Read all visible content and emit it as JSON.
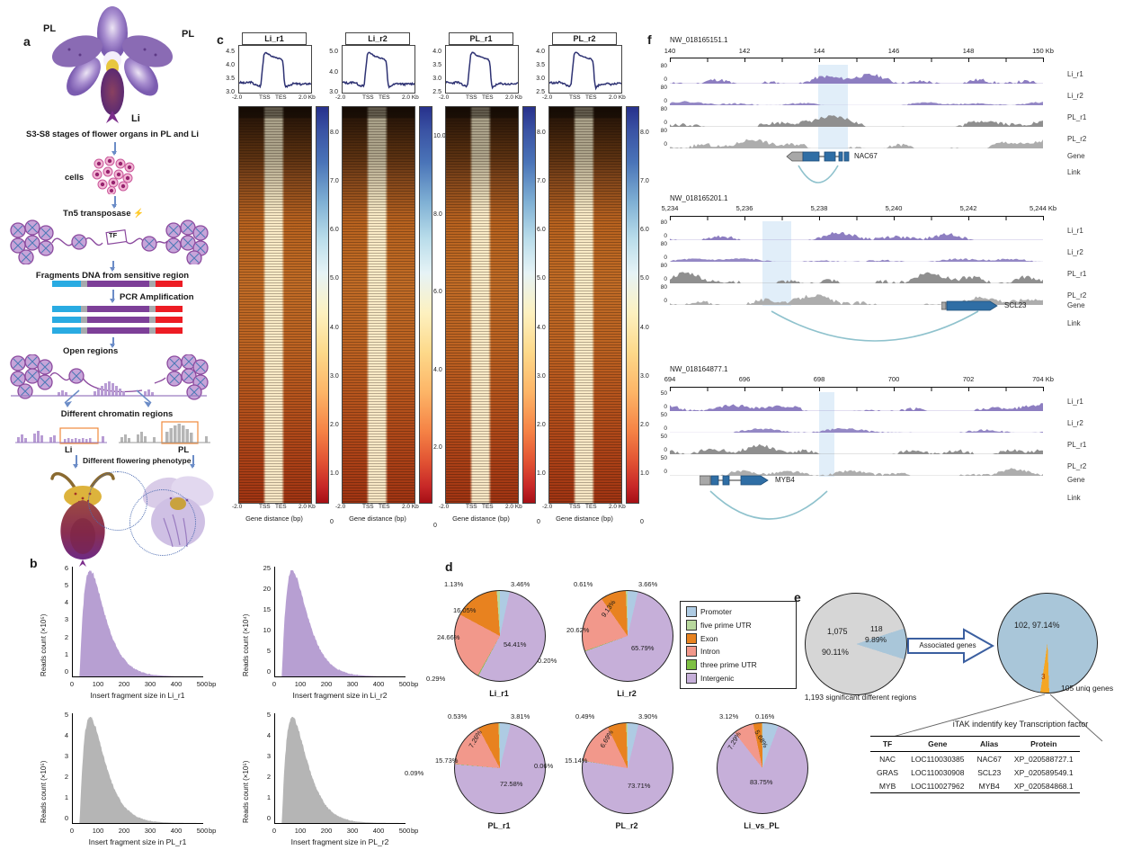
{
  "panels": {
    "a": "a",
    "b": "b",
    "c": "c",
    "d": "d",
    "e": "e",
    "f": "f"
  },
  "panel_a": {
    "pl_left": "PL",
    "pl_right": "PL",
    "li": "Li",
    "stages": "S3-S8 stages of flower organs in PL and Li",
    "cells": "cells",
    "tn5": "Tn5 transposase",
    "tf": "TF",
    "fragments": "Fragments DNA from sensitive region",
    "pcr": "PCR Amplification",
    "open": "Open regions",
    "chromatin": "Different chromatin regions",
    "li2": "Li",
    "pl2": "PL",
    "phenotype": "Different flowering phenotype"
  },
  "panel_b": {
    "hists": [
      {
        "ylabel": "Reads count (×10⁵)",
        "yticks": [
          "6",
          "5",
          "4",
          "3",
          "2",
          "1",
          "0"
        ],
        "xticks": [
          "0",
          "100",
          "200",
          "300",
          "400",
          "500"
        ],
        "xunit": "bp",
        "xlabel": "Insert fragment size in Li_r1",
        "color": "#b79fd2"
      },
      {
        "ylabel": "Reads count (×10⁴)",
        "yticks": [
          "25",
          "20",
          "15",
          "10",
          "5",
          "0"
        ],
        "xticks": [
          "0",
          "100",
          "200",
          "300",
          "400",
          "500"
        ],
        "xunit": "bp",
        "xlabel": "Insert fragment size in Li_r2",
        "color": "#b79fd2"
      },
      {
        "ylabel": "Reads count (×10⁵)",
        "yticks": [
          "5",
          "4",
          "3",
          "2",
          "1",
          "0"
        ],
        "xticks": [
          "0",
          "100",
          "200",
          "300",
          "400",
          "500"
        ],
        "xunit": "bp",
        "xlabel": "Insert fragment size in PL_r1",
        "color": "#b5b5b5"
      },
      {
        "ylabel": "Reads count (×10⁵)",
        "yticks": [
          "5",
          "4",
          "3",
          "2",
          "1",
          "0"
        ],
        "xticks": [
          "0",
          "100",
          "200",
          "300",
          "400",
          "500"
        ],
        "xunit": "bp",
        "xlabel": "Insert fragment size in PL_r2",
        "color": "#b5b5b5"
      }
    ]
  },
  "panel_c": {
    "xticks": [
      "-2.0",
      "TSS",
      "TES",
      "2.0 Kb"
    ],
    "xlabel": "Gene distance (bp)",
    "columns": [
      {
        "title": "Li_r1",
        "yticks": [
          "4.5",
          "4.0",
          "3.5",
          "3.0"
        ],
        "cticks": [
          "8.0",
          "7.0",
          "6.0",
          "5.0",
          "4.0",
          "3.0",
          "2.0",
          "1.0",
          "0"
        ]
      },
      {
        "title": "Li_r2",
        "yticks": [
          "5.0",
          "4.0",
          "3.0"
        ],
        "cticks": [
          "10.0",
          "8.0",
          "6.0",
          "4.0",
          "2.0",
          "0"
        ]
      },
      {
        "title": "PL_r1",
        "yticks": [
          "4.0",
          "3.5",
          "3.0",
          "2.5"
        ],
        "cticks": [
          "8.0",
          "7.0",
          "6.0",
          "5.0",
          "4.0",
          "3.0",
          "2.0",
          "1.0",
          "0"
        ]
      },
      {
        "title": "PL_r2",
        "yticks": [
          "4.0",
          "3.5",
          "3.0",
          "2.5"
        ],
        "cticks": [
          "8.0",
          "7.0",
          "6.0",
          "5.0",
          "4.0",
          "3.0",
          "2.0",
          "1.0",
          "0"
        ]
      }
    ]
  },
  "panel_d": {
    "legend": [
      {
        "label": "Promoter",
        "color": "#aecbe3"
      },
      {
        "label": "five prime UTR",
        "color": "#b8d89d"
      },
      {
        "label": "Exon",
        "color": "#e8821f"
      },
      {
        "label": "Intron",
        "color": "#f2988b"
      },
      {
        "label": "three prime UTR",
        "color": "#7ec043"
      },
      {
        "label": "Intergenic",
        "color": "#c6afd9"
      }
    ],
    "pies": [
      {
        "name": "Li_r1",
        "slices": [
          {
            "legend": "Promoter",
            "color": "#aecbe3",
            "pct": 3.46,
            "label": "3.46%"
          },
          {
            "legend": "Intergenic",
            "color": "#c6afd9",
            "pct": 54.41,
            "label": "54.41%"
          },
          {
            "legend": "three prime UTR",
            "color": "#7ec043",
            "pct": 0.29,
            "label": "0.29%"
          },
          {
            "legend": "Intron",
            "color": "#f2988b",
            "pct": 24.66,
            "label": "24.66%"
          },
          {
            "legend": "Exon",
            "color": "#e8821f",
            "pct": 16.05,
            "label": "16.05%"
          },
          {
            "legend": "five prime UTR",
            "color": "#b8d89d",
            "pct": 1.13,
            "label": "1.13%"
          }
        ]
      },
      {
        "name": "Li_r2",
        "slices": [
          {
            "legend": "Promoter",
            "color": "#aecbe3",
            "pct": 3.66,
            "label": "3.66%"
          },
          {
            "legend": "Intergenic",
            "color": "#c6afd9",
            "pct": 65.79,
            "label": "65.79%"
          },
          {
            "legend": "three prime UTR",
            "color": "#7ec043",
            "pct": 0.2,
            "label": "0.20%"
          },
          {
            "legend": "Intron",
            "color": "#f2988b",
            "pct": 20.62,
            "label": "20.62%"
          },
          {
            "legend": "Exon",
            "color": "#e8821f",
            "pct": 9.13,
            "label": "9.13%"
          },
          {
            "legend": "five prime UTR",
            "color": "#b8d89d",
            "pct": 0.61,
            "label": "0.61%"
          }
        ]
      },
      {
        "name": "PL_r1",
        "slices": [
          {
            "legend": "Promoter",
            "color": "#aecbe3",
            "pct": 3.81,
            "label": "3.81%"
          },
          {
            "legend": "Intergenic",
            "color": "#c6afd9",
            "pct": 72.58,
            "label": "72.58%"
          },
          {
            "legend": "three prime UTR",
            "color": "#7ec043",
            "pct": 0.09,
            "label": "0.09%"
          },
          {
            "legend": "Intron",
            "color": "#f2988b",
            "pct": 15.73,
            "label": "15.73%"
          },
          {
            "legend": "Exon",
            "color": "#e8821f",
            "pct": 7.26,
            "label": "7.26%"
          },
          {
            "legend": "five prime UTR",
            "color": "#b8d89d",
            "pct": 0.53,
            "label": "0.53%"
          }
        ]
      },
      {
        "name": "PL_r2",
        "slices": [
          {
            "legend": "Promoter",
            "color": "#aecbe3",
            "pct": 3.9,
            "label": "3.90%"
          },
          {
            "legend": "Intergenic",
            "color": "#c6afd9",
            "pct": 73.71,
            "label": "73.71%"
          },
          {
            "legend": "three prime UTR",
            "color": "#7ec043",
            "pct": 0.06,
            "label": "0.06%"
          },
          {
            "legend": "Intron",
            "color": "#f2988b",
            "pct": 15.14,
            "label": "15.14%"
          },
          {
            "legend": "Exon",
            "color": "#e8821f",
            "pct": 6.69,
            "label": "6.69%"
          },
          {
            "legend": "five prime UTR",
            "color": "#b8d89d",
            "pct": 0.49,
            "label": "0.49%"
          }
        ]
      },
      {
        "name": "Li_vs_PL",
        "slices": [
          {
            "legend": "Promoter",
            "color": "#aecbe3",
            "pct": 5.68,
            "label": "5.68%"
          },
          {
            "legend": "Intergenic",
            "color": "#c6afd9",
            "pct": 83.75,
            "label": "83.75%"
          },
          {
            "legend": "Intron",
            "color": "#f2988b",
            "pct": 7.29,
            "label": "7.29%"
          },
          {
            "legend": "Exon",
            "color": "#e8821f",
            "pct": 3.12,
            "label": "3.12%"
          },
          {
            "legend": "five prime UTR",
            "color": "#b8d89d",
            "pct": 0.16,
            "label": "0.16%"
          }
        ]
      }
    ]
  },
  "panel_e": {
    "left_pie": {
      "rotate": 72,
      "slices": [
        {
          "color": "#a9c6d9",
          "pct": 9.89
        },
        {
          "color": "#d6d6d6",
          "pct": 90.11
        }
      ]
    },
    "left_gray_count": "1,075",
    "left_gray_pct": "90.11%",
    "left_blue_count": "118",
    "left_blue_pct": "9.89%",
    "caption": "1,193 significant different regions",
    "arrow_label": "Associated genes",
    "right_pie": {
      "rotate": 178,
      "slices": [
        {
          "color": "#f5a623",
          "pct": 2.86
        },
        {
          "color": "#a9c6d9",
          "pct": 97.14
        }
      ]
    },
    "right_blue_label": "102, 97.14%",
    "right_orange_label": "3",
    "uniq": "105 uniq genes",
    "table_title": "iTAK indentify key Transcription factor",
    "table": {
      "headers": [
        "TF",
        "Gene",
        "Alias",
        "Protein"
      ],
      "rows": [
        [
          "NAC",
          "LOC110030385",
          "NAC67",
          "XP_020588727.1"
        ],
        [
          "GRAS",
          "LOC110030908",
          "SCL23",
          "XP_020589549.1"
        ],
        [
          "MYB",
          "LOC110027962",
          "MYB4",
          "XP_020584868.1"
        ]
      ]
    }
  },
  "panel_f": {
    "track_labels": [
      "Li_r1",
      "Li_r2",
      "PL_r1",
      "PL_r2",
      "Gene",
      "Link"
    ],
    "blocks": [
      {
        "id": "NW_018165151.1",
        "ticks": [
          "140",
          "142",
          "144",
          "146",
          "148",
          "150 Kb"
        ],
        "ymax": "80",
        "ymin": "0",
        "gene": "NAC67"
      },
      {
        "id": "NW_018165201.1",
        "ticks": [
          "5,234",
          "5,236",
          "5,238",
          "5,240",
          "5,242",
          "5,244 Kb"
        ],
        "ymax": "80",
        "ymin": "0",
        "gene": "SCL23"
      },
      {
        "id": "NW_018164877.1",
        "ticks": [
          "694",
          "696",
          "698",
          "700",
          "702",
          "704 Kb"
        ],
        "ymax": "50",
        "ymin": "0",
        "gene": "MYB4"
      }
    ],
    "colors": {
      "li_purple": "#8d7ec1",
      "pl_gray1": "#8f8f8f",
      "pl_gray2": "#adadad",
      "highlight": "#d9eaf7",
      "link": "#8fc2cd",
      "gene_blue": "#2f6ea5"
    }
  }
}
